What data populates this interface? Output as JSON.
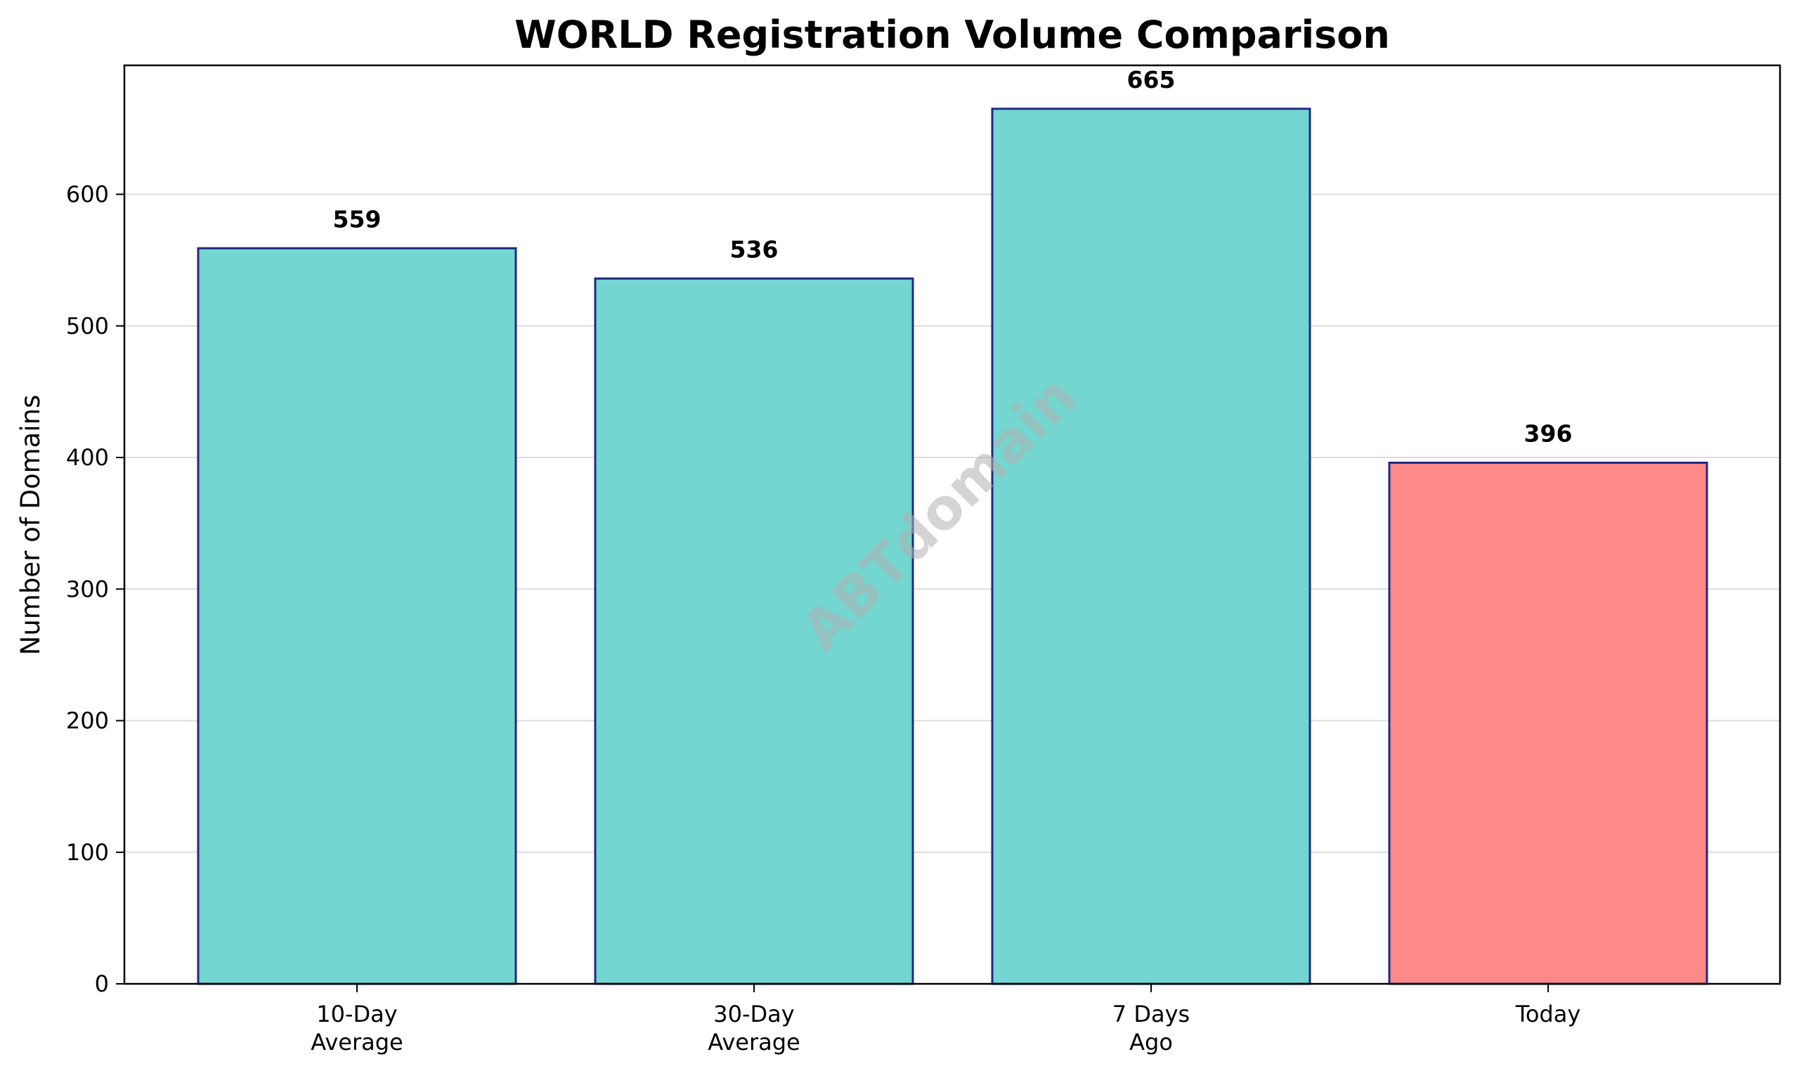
{
  "chart_data": {
    "type": "bar",
    "title": "WORLD Registration Volume Comparison",
    "xlabel": "",
    "ylabel": "Number of Domains",
    "categories": [
      [
        "10-Day",
        "Average"
      ],
      [
        "30-Day",
        "Average"
      ],
      [
        "7 Days",
        "Ago"
      ],
      [
        "Today"
      ]
    ],
    "values": [
      559,
      536,
      665,
      396
    ],
    "value_labels": [
      "559",
      "536",
      "665",
      "396"
    ],
    "bar_colors": [
      "#73d6d0",
      "#73d6d0",
      "#73d6d0",
      "#ff8888"
    ],
    "bar_edge_color": "#1f2a80",
    "ylim": [
      0,
      698
    ],
    "yticks": [
      0,
      100,
      200,
      300,
      400,
      500,
      600
    ],
    "grid": "horizontal",
    "legend": "none"
  },
  "watermark": "ABTdomain"
}
